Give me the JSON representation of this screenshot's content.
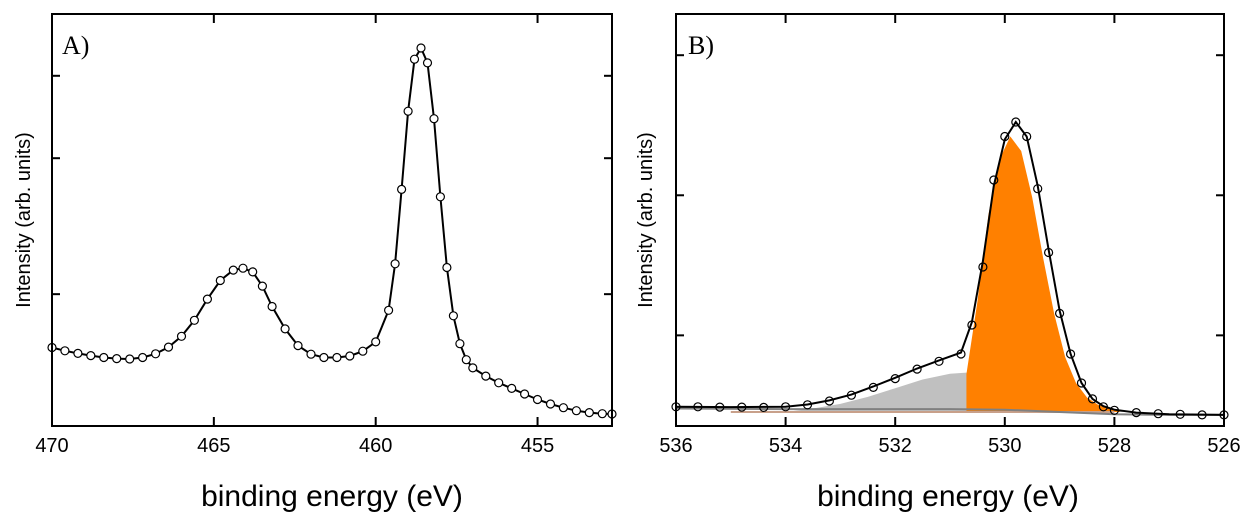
{
  "colors": {
    "axis": "#000000",
    "marker_edge": "#000000",
    "marker_fill": "#ffffff",
    "fit_line": "#000000",
    "orange_component": "#ff8000",
    "gray_component": "#c0c0c0",
    "background_line": "#808080",
    "baseline_tint": "#c8a08a"
  },
  "chart_data": [
    {
      "panel": "A)",
      "type": "scatter",
      "xlabel": "binding energy (eV)",
      "ylabel": "Intensity (arb. units)",
      "xlim": [
        470,
        452.7
      ],
      "x_reversed": true,
      "ylim": [
        0,
        1
      ],
      "x_ticks": [
        470,
        465,
        460,
        455
      ],
      "y_tick_labels_shown": false,
      "series": [
        {
          "style": "open circles joined by a line",
          "x": [
            470,
            469.6,
            469.2,
            468.8,
            468.4,
            468.0,
            467.6,
            467.2,
            466.8,
            466.4,
            466.0,
            465.6,
            465.2,
            464.8,
            464.4,
            464.1,
            463.8,
            463.5,
            463.2,
            462.8,
            462.4,
            462.0,
            461.6,
            461.2,
            460.8,
            460.4,
            460.0,
            459.6,
            459.4,
            459.2,
            459.0,
            458.8,
            458.6,
            458.4,
            458.2,
            458.0,
            457.8,
            457.6,
            457.4,
            457.2,
            457.0,
            456.6,
            456.2,
            455.8,
            455.4,
            455.0,
            454.6,
            454.2,
            453.8,
            453.4,
            453.0,
            452.7
          ],
          "y": [
            0.195,
            0.186,
            0.179,
            0.173,
            0.168,
            0.165,
            0.164,
            0.168,
            0.178,
            0.196,
            0.225,
            0.268,
            0.325,
            0.375,
            0.403,
            0.408,
            0.398,
            0.36,
            0.305,
            0.245,
            0.2,
            0.177,
            0.168,
            0.168,
            0.172,
            0.185,
            0.21,
            0.295,
            0.42,
            0.62,
            0.83,
            0.97,
            1.0,
            0.96,
            0.81,
            0.6,
            0.41,
            0.28,
            0.205,
            0.162,
            0.14,
            0.118,
            0.1,
            0.085,
            0.07,
            0.055,
            0.043,
            0.033,
            0.025,
            0.02,
            0.017,
            0.016
          ]
        }
      ]
    },
    {
      "panel": "B)",
      "type": "area",
      "xlabel": "binding energy (eV)",
      "ylabel": "Intensity (arb. units)",
      "xlim": [
        536,
        526
      ],
      "x_reversed": true,
      "ylim": [
        0,
        1
      ],
      "x_ticks": [
        536,
        534,
        532,
        530,
        528,
        526
      ],
      "y_tick_labels_shown": false,
      "series": [
        {
          "style": "open circles",
          "x": [
            536,
            535.6,
            535.2,
            534.8,
            534.4,
            534.0,
            533.6,
            533.2,
            532.8,
            532.4,
            532.0,
            531.6,
            531.2,
            530.8,
            530.6,
            530.4,
            530.2,
            530.0,
            529.8,
            529.6,
            529.4,
            529.2,
            529.0,
            528.8,
            528.6,
            528.4,
            528.2,
            528.0,
            527.6,
            527.2,
            526.8,
            526.4,
            526.0
          ],
          "y": [
            0.018,
            0.018,
            0.017,
            0.017,
            0.016,
            0.018,
            0.025,
            0.038,
            0.058,
            0.085,
            0.115,
            0.148,
            0.175,
            0.2,
            0.3,
            0.5,
            0.8,
            0.95,
            1.0,
            0.95,
            0.77,
            0.55,
            0.34,
            0.2,
            0.1,
            0.045,
            0.018,
            0.006,
            -0.002,
            -0.006,
            -0.008,
            -0.01,
            -0.01
          ]
        },
        {
          "style": "fit envelope (black line)",
          "x": [
            536,
            535,
            534,
            533.6,
            533.2,
            532.8,
            532.4,
            532.0,
            531.6,
            531.2,
            530.8,
            530.6,
            530.4,
            530.2,
            530.0,
            529.8,
            529.6,
            529.4,
            529.2,
            529.0,
            528.8,
            528.6,
            528.4,
            528.2,
            528.0,
            527.6,
            527.0,
            526.0
          ],
          "y": [
            0.018,
            0.017,
            0.018,
            0.026,
            0.04,
            0.06,
            0.088,
            0.118,
            0.15,
            0.178,
            0.205,
            0.31,
            0.52,
            0.78,
            0.94,
            1.0,
            0.95,
            0.78,
            0.56,
            0.35,
            0.2,
            0.1,
            0.045,
            0.02,
            0.008,
            -0.002,
            -0.008,
            -0.01
          ]
        },
        {
          "style": "filled component (orange)",
          "x": [
            530.7,
            530.5,
            530.3,
            530.1,
            529.9,
            529.7,
            529.5,
            529.3,
            529.1,
            528.9,
            528.7,
            528.5,
            528.3,
            528.1,
            527.9
          ],
          "y": [
            0.13,
            0.38,
            0.68,
            0.87,
            0.95,
            0.9,
            0.74,
            0.53,
            0.34,
            0.19,
            0.1,
            0.05,
            0.025,
            0.012,
            0.006
          ]
        },
        {
          "style": "filled component (gray)",
          "x": [
            534.0,
            533.5,
            533.0,
            532.5,
            532.0,
            531.5,
            531.0,
            530.7,
            530.4,
            530.0,
            529.5,
            529.0,
            528.5,
            528.0,
            527.8
          ],
          "y": [
            0.0,
            0.012,
            0.028,
            0.052,
            0.082,
            0.112,
            0.132,
            0.136,
            0.13,
            0.11,
            0.078,
            0.047,
            0.022,
            0.006,
            0.0
          ]
        },
        {
          "style": "background line (gray)",
          "x": [
            536,
            534,
            532,
            531,
            530,
            529,
            528,
            527,
            526
          ],
          "y": [
            0.012,
            0.01,
            0.01,
            0.01,
            0.008,
            0.0,
            -0.008,
            -0.01,
            -0.01
          ]
        }
      ]
    }
  ]
}
